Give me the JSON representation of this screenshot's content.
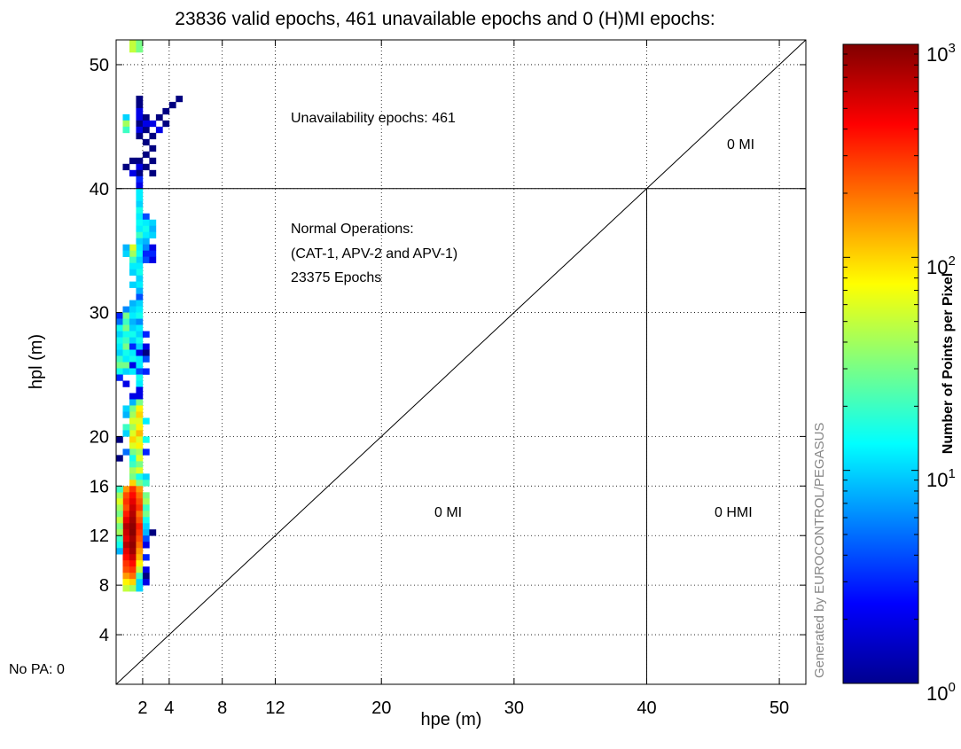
{
  "chart_data": {
    "type": "heatmap",
    "title": "23836 valid epochs, 461 unavailable epochs and 0 (H)MI epochs:",
    "xlabel": "hpe (m)",
    "ylabel": "hpl (m)",
    "xlim": [
      0,
      52
    ],
    "ylim": [
      0,
      52
    ],
    "grid": true,
    "x_ticks": [
      2,
      4,
      8,
      12,
      20,
      30,
      40,
      50
    ],
    "y_ticks": [
      4,
      8,
      12,
      16,
      20,
      30,
      40,
      50
    ],
    "alert_limit": 40,
    "annotations": {
      "unavailability": "Unavailability epochs: 461",
      "normal_ops_title": "Normal Operations:",
      "normal_ops_cat": "(CAT-1, APV-2 and APV-1)",
      "normal_ops_count": "23375 Epochs",
      "mi_top": "0 MI",
      "mi_bottom": "0 MI",
      "hmi": "0 HMI",
      "no_pa": "No PA: 0",
      "generated_by": "Generated by EUROCONTROL/PEGASUS"
    },
    "colorbar": {
      "label": "Number of Points per Pixel",
      "scale": "log",
      "min_label_base": "10",
      "min_label_exp": "0",
      "mid1_label_base": "10",
      "mid1_label_exp": "1",
      "mid2_label_base": "10",
      "mid2_label_exp": "2",
      "max_label_base": "10",
      "max_label_exp": "3",
      "range": [
        1,
        1000
      ]
    },
    "cell_size_m": 0.5,
    "cells": [
      [
        1.0,
        51.5,
        50
      ],
      [
        1.0,
        51.0,
        50
      ],
      [
        1.5,
        51.5,
        30
      ],
      [
        1.5,
        51.0,
        30
      ],
      [
        1.5,
        47.0,
        1
      ],
      [
        1.5,
        46.5,
        1
      ],
      [
        1.5,
        46.0,
        2
      ],
      [
        1.5,
        45.5,
        2
      ],
      [
        1.5,
        45.0,
        1
      ],
      [
        1.5,
        44.5,
        2
      ],
      [
        1.5,
        44.0,
        1
      ],
      [
        2.0,
        45.5,
        1
      ],
      [
        2.0,
        44.5,
        1
      ],
      [
        2.0,
        43.5,
        1
      ],
      [
        2.5,
        45.0,
        2
      ],
      [
        2.5,
        44.0,
        1
      ],
      [
        3.0,
        45.5,
        1
      ],
      [
        3.0,
        44.5,
        2
      ],
      [
        3.5,
        46.0,
        1
      ],
      [
        3.5,
        45.0,
        1
      ],
      [
        4.0,
        46.5,
        1
      ],
      [
        4.5,
        47.0,
        1
      ],
      [
        2.0,
        45.0,
        2
      ],
      [
        2.5,
        43.0,
        1
      ],
      [
        0.5,
        45.5,
        10
      ],
      [
        0.5,
        45.0,
        40
      ],
      [
        0.5,
        44.5,
        20
      ],
      [
        1.5,
        42.0,
        1
      ],
      [
        1.5,
        41.5,
        2
      ],
      [
        1.5,
        41.0,
        1
      ],
      [
        1.5,
        40.5,
        3
      ],
      [
        1.0,
        42.0,
        1
      ],
      [
        1.0,
        41.0,
        2
      ],
      [
        2.0,
        42.5,
        1
      ],
      [
        2.0,
        41.5,
        1
      ],
      [
        2.5,
        42.0,
        1
      ],
      [
        2.5,
        41.0,
        1
      ],
      [
        0.5,
        41.5,
        1
      ],
      [
        1.5,
        40.0,
        2
      ],
      [
        1.5,
        39.5,
        12
      ],
      [
        1.5,
        39.0,
        12
      ],
      [
        1.5,
        38.5,
        10
      ],
      [
        1.5,
        38.0,
        15
      ],
      [
        1.5,
        37.5,
        12
      ],
      [
        1.5,
        37.0,
        14
      ],
      [
        1.5,
        36.5,
        12
      ],
      [
        1.5,
        36.0,
        20
      ],
      [
        1.5,
        35.5,
        10
      ],
      [
        1.5,
        35.0,
        12
      ],
      [
        1.5,
        34.5,
        14
      ],
      [
        1.5,
        34.0,
        10
      ],
      [
        1.5,
        33.5,
        12
      ],
      [
        1.5,
        33.0,
        15
      ],
      [
        1.5,
        32.5,
        10
      ],
      [
        1.5,
        32.0,
        12
      ],
      [
        1.5,
        31.5,
        8
      ],
      [
        2.0,
        37.5,
        4
      ],
      [
        2.0,
        37.0,
        12
      ],
      [
        2.0,
        36.5,
        15
      ],
      [
        2.0,
        36.0,
        12
      ],
      [
        2.0,
        35.5,
        8
      ],
      [
        2.0,
        35.0,
        6
      ],
      [
        2.0,
        34.5,
        3
      ],
      [
        2.0,
        34.0,
        4
      ],
      [
        2.5,
        37.0,
        10
      ],
      [
        2.5,
        36.5,
        8
      ],
      [
        2.5,
        36.0,
        10
      ],
      [
        2.5,
        35.0,
        2
      ],
      [
        2.5,
        34.5,
        3
      ],
      [
        2.5,
        34.0,
        2
      ],
      [
        1.0,
        35.0,
        60
      ],
      [
        1.0,
        34.5,
        40
      ],
      [
        1.0,
        34.0,
        20
      ],
      [
        1.0,
        33.5,
        12
      ],
      [
        0.5,
        35.0,
        8
      ],
      [
        0.5,
        34.5,
        10
      ],
      [
        1.0,
        33.0,
        10
      ],
      [
        1.0,
        32.0,
        10
      ],
      [
        0.0,
        29.5,
        3
      ],
      [
        0.0,
        29.0,
        5
      ],
      [
        0.0,
        28.5,
        15
      ],
      [
        0.0,
        28.0,
        10
      ],
      [
        0.0,
        27.5,
        15
      ],
      [
        0.0,
        27.0,
        12
      ],
      [
        0.0,
        26.5,
        10
      ],
      [
        0.0,
        26.0,
        20
      ],
      [
        0.0,
        25.5,
        30
      ],
      [
        0.0,
        25.0,
        15
      ],
      [
        0.0,
        24.5,
        3
      ],
      [
        0.5,
        30.0,
        6
      ],
      [
        0.5,
        29.5,
        30
      ],
      [
        0.5,
        29.0,
        20
      ],
      [
        0.5,
        28.5,
        30
      ],
      [
        0.5,
        28.0,
        15
      ],
      [
        0.5,
        27.5,
        20
      ],
      [
        0.5,
        27.0,
        30
      ],
      [
        0.5,
        26.5,
        15
      ],
      [
        0.5,
        26.0,
        12
      ],
      [
        0.5,
        25.5,
        30
      ],
      [
        0.5,
        25.0,
        10
      ],
      [
        1.0,
        30.5,
        8
      ],
      [
        1.0,
        30.0,
        10
      ],
      [
        1.0,
        29.5,
        12
      ],
      [
        1.0,
        29.0,
        8
      ],
      [
        1.0,
        28.5,
        10
      ],
      [
        1.0,
        28.0,
        15
      ],
      [
        1.0,
        27.5,
        10
      ],
      [
        1.0,
        27.0,
        3
      ],
      [
        1.0,
        26.5,
        12
      ],
      [
        1.0,
        26.0,
        15
      ],
      [
        1.0,
        25.5,
        2
      ],
      [
        1.0,
        25.0,
        12
      ],
      [
        1.5,
        31.0,
        4
      ],
      [
        1.5,
        30.5,
        10
      ],
      [
        1.5,
        30.0,
        12
      ],
      [
        1.5,
        29.5,
        15
      ],
      [
        1.5,
        29.0,
        6
      ],
      [
        1.5,
        28.5,
        12
      ],
      [
        1.5,
        28.0,
        10
      ],
      [
        1.5,
        27.5,
        15
      ],
      [
        1.5,
        27.0,
        10
      ],
      [
        1.5,
        26.5,
        2
      ],
      [
        1.5,
        26.0,
        12
      ],
      [
        1.5,
        25.5,
        12
      ],
      [
        1.5,
        25.0,
        4
      ],
      [
        1.5,
        24.5,
        15
      ],
      [
        1.5,
        24.0,
        12
      ],
      [
        2.0,
        28.0,
        3
      ],
      [
        2.0,
        27.0,
        2
      ],
      [
        2.0,
        26.5,
        1
      ],
      [
        2.0,
        26.0,
        4
      ],
      [
        2.0,
        25.0,
        3
      ],
      [
        0.5,
        24.0,
        2
      ],
      [
        1.0,
        23.0,
        2
      ],
      [
        1.5,
        23.5,
        2
      ],
      [
        1.5,
        23.0,
        2
      ],
      [
        1.0,
        22.5,
        8
      ],
      [
        1.0,
        22.0,
        30
      ],
      [
        1.0,
        21.5,
        40
      ],
      [
        1.0,
        21.0,
        60
      ],
      [
        1.0,
        20.5,
        40
      ],
      [
        1.0,
        20.0,
        60
      ],
      [
        1.0,
        19.5,
        100
      ],
      [
        1.0,
        19.0,
        60
      ],
      [
        1.0,
        18.5,
        30
      ],
      [
        1.0,
        18.0,
        15
      ],
      [
        1.0,
        17.5,
        20
      ],
      [
        1.0,
        17.0,
        40
      ],
      [
        1.0,
        16.5,
        30
      ],
      [
        1.0,
        16.0,
        100
      ],
      [
        1.5,
        22.5,
        30
      ],
      [
        1.5,
        22.0,
        80
      ],
      [
        1.5,
        21.5,
        100
      ],
      [
        1.5,
        21.0,
        60
      ],
      [
        1.5,
        20.5,
        80
      ],
      [
        1.5,
        20.0,
        120
      ],
      [
        1.5,
        19.5,
        60
      ],
      [
        1.5,
        19.0,
        80
      ],
      [
        1.5,
        18.5,
        40
      ],
      [
        1.5,
        18.0,
        60
      ],
      [
        1.5,
        17.5,
        30
      ],
      [
        1.5,
        17.0,
        60
      ],
      [
        1.5,
        16.5,
        15
      ],
      [
        1.5,
        16.0,
        30
      ],
      [
        0.5,
        22.0,
        10
      ],
      [
        0.5,
        21.5,
        8
      ],
      [
        0.5,
        20.5,
        20
      ],
      [
        0.5,
        20.0,
        10
      ],
      [
        0.5,
        18.5,
        5
      ],
      [
        2.0,
        21.0,
        12
      ],
      [
        2.0,
        19.5,
        15
      ],
      [
        2.0,
        18.5,
        3
      ],
      [
        2.0,
        16.5,
        10
      ],
      [
        2.0,
        16.0,
        20
      ],
      [
        0.0,
        19.5,
        1
      ],
      [
        0.0,
        18.0,
        1
      ],
      [
        0.5,
        15.5,
        150
      ],
      [
        0.5,
        15.0,
        250
      ],
      [
        0.5,
        14.5,
        300
      ],
      [
        0.5,
        14.0,
        250
      ],
      [
        0.5,
        13.5,
        350
      ],
      [
        0.5,
        13.0,
        500
      ],
      [
        0.5,
        12.5,
        700
      ],
      [
        0.5,
        12.0,
        600
      ],
      [
        0.5,
        11.5,
        500
      ],
      [
        0.5,
        11.0,
        700
      ],
      [
        0.5,
        10.5,
        500
      ],
      [
        0.5,
        10.0,
        400
      ],
      [
        0.5,
        9.5,
        300
      ],
      [
        0.5,
        9.0,
        250
      ],
      [
        0.5,
        8.5,
        150
      ],
      [
        0.5,
        8.0,
        80
      ],
      [
        0.5,
        7.5,
        50
      ],
      [
        1.0,
        15.5,
        300
      ],
      [
        1.0,
        15.0,
        400
      ],
      [
        1.0,
        14.5,
        500
      ],
      [
        1.0,
        14.0,
        600
      ],
      [
        1.0,
        13.5,
        700
      ],
      [
        1.0,
        13.0,
        800
      ],
      [
        1.0,
        12.5,
        900
      ],
      [
        1.0,
        12.0,
        950
      ],
      [
        1.0,
        11.5,
        800
      ],
      [
        1.0,
        11.0,
        900
      ],
      [
        1.0,
        10.5,
        800
      ],
      [
        1.0,
        10.0,
        600
      ],
      [
        1.0,
        9.5,
        400
      ],
      [
        1.0,
        9.0,
        300
      ],
      [
        1.0,
        8.5,
        200
      ],
      [
        1.0,
        8.0,
        100
      ],
      [
        1.0,
        7.5,
        40
      ],
      [
        1.5,
        15.5,
        150
      ],
      [
        1.5,
        15.0,
        200
      ],
      [
        1.5,
        14.5,
        250
      ],
      [
        1.5,
        14.0,
        300
      ],
      [
        1.5,
        13.5,
        200
      ],
      [
        1.5,
        13.0,
        250
      ],
      [
        1.5,
        12.5,
        350
      ],
      [
        1.5,
        12.0,
        300
      ],
      [
        1.5,
        11.5,
        250
      ],
      [
        1.5,
        11.0,
        200
      ],
      [
        1.5,
        10.5,
        150
      ],
      [
        1.5,
        10.0,
        120
      ],
      [
        1.5,
        9.5,
        80
      ],
      [
        1.5,
        9.0,
        50
      ],
      [
        1.5,
        8.5,
        20
      ],
      [
        1.5,
        8.0,
        10
      ],
      [
        0.0,
        15.5,
        20
      ],
      [
        0.0,
        15.0,
        40
      ],
      [
        0.0,
        14.5,
        60
      ],
      [
        0.0,
        14.0,
        40
      ],
      [
        0.0,
        13.5,
        30
      ],
      [
        0.0,
        13.0,
        50
      ],
      [
        0.0,
        12.5,
        30
      ],
      [
        0.0,
        12.0,
        40
      ],
      [
        0.0,
        11.5,
        20
      ],
      [
        0.0,
        11.0,
        15
      ],
      [
        0.0,
        10.5,
        8
      ],
      [
        2.0,
        15.0,
        30
      ],
      [
        2.0,
        14.5,
        40
      ],
      [
        2.0,
        14.0,
        20
      ],
      [
        2.0,
        13.5,
        30
      ],
      [
        2.0,
        13.0,
        15
      ],
      [
        2.0,
        12.5,
        10
      ],
      [
        2.0,
        12.0,
        8
      ],
      [
        2.0,
        11.5,
        4
      ],
      [
        2.0,
        11.0,
        2
      ],
      [
        2.0,
        10.0,
        3
      ],
      [
        2.0,
        9.0,
        2
      ],
      [
        2.0,
        8.5,
        1
      ],
      [
        2.5,
        12.0,
        1
      ],
      [
        2.0,
        8.0,
        2
      ],
      [
        1.5,
        7.5,
        10
      ],
      [
        0.0,
        15.5,
        20
      ]
    ]
  }
}
